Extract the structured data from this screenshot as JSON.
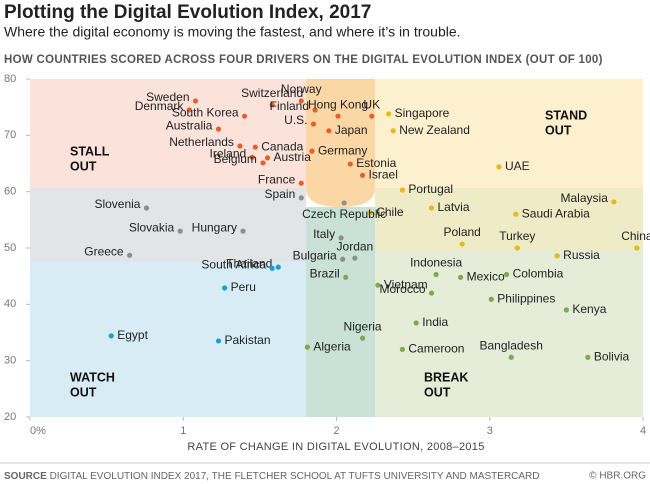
{
  "chart_data": {
    "type": "scatter",
    "title": "Plotting the Digital Evolution Index, 2017",
    "subtitle": "Where the digital economy is moving the fastest, and where it’s in trouble.",
    "header": "HOW COUNTRIES SCORED ACROSS FOUR DRIVERS ON THE DIGITAL EVOLUTION INDEX (OUT OF 100)",
    "x_label": "RATE OF CHANGE IN DIGITAL EVOLUTION, 2008–2015",
    "quadrant_labels": [
      [
        "STALL",
        "OUT"
      ],
      [
        "STAND",
        "OUT"
      ],
      [
        "WATCH",
        "OUT"
      ],
      [
        "BREAK",
        "OUT"
      ]
    ],
    "source_label": "SOURCE",
    "source": "DIGITAL EVOLUTION INDEX 2017, THE FLETCHER SCHOOL AT TUFTS UNIVERSITY AND MASTERCARD",
    "credit": "© HBR.ORG",
    "xlim": [
      0,
      4
    ],
    "ylim": [
      20,
      80
    ],
    "xticks": [
      {
        "value": 0,
        "label": "0%"
      },
      1,
      2,
      3,
      4
    ],
    "yticks": [
      20,
      30,
      40,
      50,
      60,
      70,
      80
    ],
    "series": [
      {
        "color": "#e5602a",
        "labels": [
          "Sweden",
          "Denmark",
          "Switzerland",
          "Norway",
          "South Korea",
          "Finland",
          "Australia",
          "Netherlands",
          "Canada",
          "Ireland",
          "Austria",
          "Belgium",
          "U.S.",
          "Germany",
          "Japan",
          "France",
          "Estonia",
          "Israel",
          "Hong Kong",
          "UK"
        ],
        "x": [
          1.08,
          1.04,
          1.58,
          1.77,
          1.4,
          1.86,
          1.23,
          1.37,
          1.47,
          1.45,
          1.55,
          1.52,
          1.85,
          1.84,
          1.95,
          1.77,
          2.09,
          2.17,
          2.01,
          2.23
        ],
        "values": [
          76.1,
          74.5,
          75.4,
          76.1,
          73.4,
          74.5,
          71.1,
          68.1,
          67.9,
          66.1,
          66.0,
          65.1,
          72.0,
          67.2,
          70.8,
          61.5,
          64.9,
          62.9,
          73.4,
          73.4
        ]
      },
      {
        "color": "#e8b81e",
        "labels": [
          "Singapore",
          "New Zealand",
          "UAE",
          "Portugal",
          "Malaysia",
          "Latvia",
          "Saudi Arabia",
          "Chile",
          "Poland",
          "Turkey",
          "China",
          "Russia"
        ],
        "x": [
          2.34,
          2.37,
          3.06,
          2.43,
          3.81,
          2.62,
          3.17,
          2.22,
          2.82,
          3.18,
          3.96,
          3.44
        ],
        "values": [
          73.8,
          70.8,
          64.4,
          60.3,
          58.2,
          57.1,
          56.0,
          56.2,
          50.7,
          50.0,
          50.0,
          48.6
        ]
      },
      {
        "color": "#8f8f8f",
        "labels": [
          "Slovenia",
          "Slovakia",
          "Hungary",
          "Greece",
          "Spain",
          "Czech Republic",
          "Italy",
          "Jordan",
          "Bulgaria"
        ],
        "x": [
          0.76,
          0.98,
          1.39,
          0.65,
          1.77,
          2.05,
          2.03,
          2.12,
          2.04
        ],
        "values": [
          57.1,
          53.0,
          53.0,
          48.7,
          58.9,
          58.0,
          51.8,
          48.2,
          48.0
        ]
      },
      {
        "color": "#1b9ed3",
        "labels": [
          "Thailand",
          "South Africa",
          "Peru",
          "Egypt",
          "Pakistan"
        ],
        "x": [
          1.62,
          1.58,
          1.27,
          0.53,
          1.23
        ],
        "values": [
          46.6,
          46.4,
          42.9,
          34.4,
          33.5
        ]
      },
      {
        "color": "#7daa4a",
        "labels": [
          "Brazil",
          "Vietnam",
          "Indonesia",
          "Mexico",
          "Colombia",
          "Morocco",
          "Philippines",
          "Kenya",
          "India",
          "Nigeria",
          "Algeria",
          "Cameroon",
          "Bangladesh",
          "Bolivia"
        ],
        "x": [
          2.06,
          2.27,
          2.65,
          2.81,
          3.11,
          2.62,
          3.01,
          3.5,
          2.52,
          2.17,
          1.81,
          2.43,
          3.14,
          3.64
        ],
        "values": [
          44.8,
          43.4,
          45.3,
          44.8,
          45.3,
          42.0,
          40.9,
          39.0,
          36.7,
          34.0,
          32.4,
          32.0,
          30.6,
          30.6
        ]
      }
    ]
  }
}
